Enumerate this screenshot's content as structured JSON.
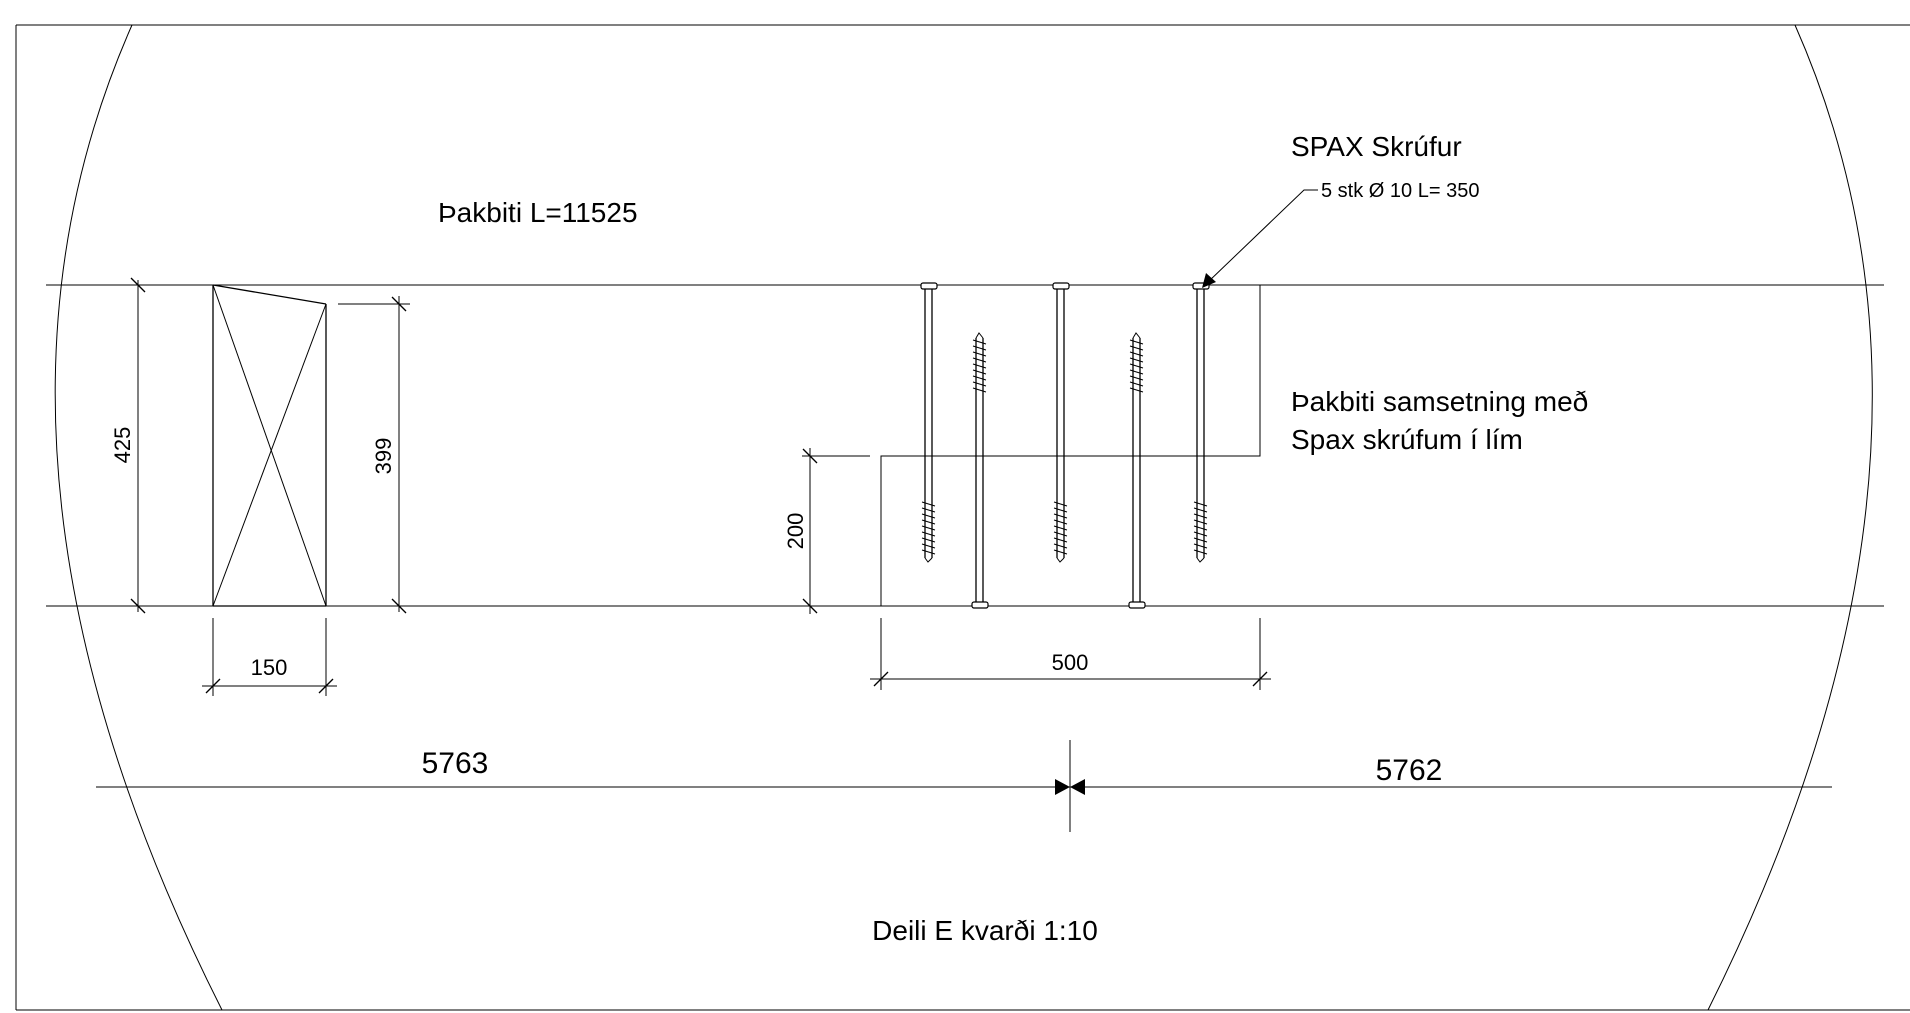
{
  "drawing": {
    "title": "Deili E kvarði 1:10",
    "beam_label": "Þakbiti L=11525",
    "screw_title": "SPAX Skrúfur",
    "screw_spec": "5 stk Ø 10 L= 350",
    "assembly_note_line1": "Þakbiti samsetning með",
    "assembly_note_line2": "Spax skrúfum í lím",
    "dims": {
      "height_total": "425",
      "height_inner": "399",
      "width_section": "150",
      "overlap_height": "200",
      "screw_spacing": "500",
      "left_length": "5763",
      "right_length": "5762"
    },
    "line_color": "#000000",
    "background_color": "#ffffff"
  }
}
